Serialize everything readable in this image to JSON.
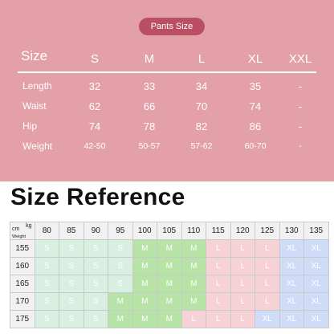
{
  "pants": {
    "badge": "Pants Size",
    "header": {
      "label": "Size",
      "sizes": [
        "S",
        "M",
        "L",
        "XL",
        "XXL"
      ]
    },
    "rows": [
      {
        "label": "Length",
        "values": [
          "32",
          "33",
          "34",
          "35",
          "-"
        ]
      },
      {
        "label": "Waist",
        "values": [
          "62",
          "66",
          "70",
          "74",
          "-"
        ]
      },
      {
        "label": "Hip",
        "values": [
          "74",
          "78",
          "82",
          "86",
          "-"
        ]
      },
      {
        "label": "Weight",
        "values": [
          "42-50",
          "50-57",
          "57-62",
          "60-70",
          "-"
        ]
      }
    ]
  },
  "reference": {
    "title": "Size Reference",
    "corner": {
      "kg": "kg",
      "cm": "cm",
      "weight": "Weight"
    },
    "weights": [
      "80",
      "85",
      "90",
      "95",
      "100",
      "105",
      "110",
      "115",
      "120",
      "125",
      "130",
      "135"
    ],
    "rows": [
      {
        "height": "155",
        "cells": [
          "S",
          "S",
          "S",
          "S",
          "M",
          "M",
          "M",
          "L",
          "L",
          "L",
          "XL",
          "XL"
        ]
      },
      {
        "height": "160",
        "cells": [
          "S",
          "S",
          "S",
          "S",
          "M",
          "M",
          "M",
          "L",
          "L",
          "L",
          "XL",
          "XL"
        ]
      },
      {
        "height": "165",
        "cells": [
          "S",
          "S",
          "S",
          "S",
          "M",
          "M",
          "M",
          "L",
          "L",
          "L",
          "XL",
          "XL"
        ]
      },
      {
        "height": "170",
        "cells": [
          "S",
          "S",
          "S",
          "M",
          "M",
          "M",
          "M",
          "L",
          "L",
          "L",
          "XL",
          "XL"
        ]
      },
      {
        "height": "175",
        "cells": [
          "S",
          "S",
          "S",
          "M",
          "M",
          "M",
          "L",
          "L",
          "L",
          "XL",
          "XL",
          "XL"
        ]
      }
    ]
  }
}
